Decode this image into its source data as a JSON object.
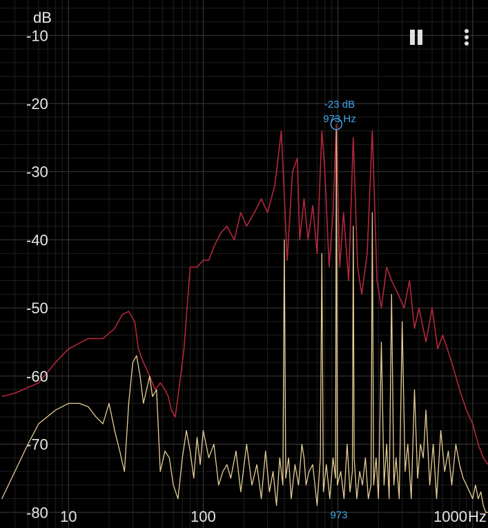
{
  "chart_data": {
    "type": "line",
    "title": "",
    "ylabel": "dB",
    "xlabel": "Hz",
    "x_scale": "log",
    "xlim": [
      3.1,
      13000
    ],
    "ylim": [
      -82.3,
      -4.8
    ],
    "x_ticks": [
      10,
      100,
      1000
    ],
    "x_tick_labels": [
      "10",
      "100",
      "1000"
    ],
    "y_ticks": [
      -10,
      -20,
      -30,
      -40,
      -50,
      -60,
      -70,
      -80
    ],
    "y_tick_labels": [
      "-10",
      "-20",
      "-30",
      "-40",
      "-50",
      "-60",
      "-70",
      "-80"
    ],
    "grid": true,
    "colors": {
      "peak_hold": "#b3283c",
      "live": "#e8cf96",
      "cursor": "#3fa6e8",
      "grid": "#3b3b3b",
      "grid_minor": "#1f1f1f",
      "background": "#000000"
    },
    "cursor": {
      "db_label": "-23 dB",
      "hz_label": "973 Hz",
      "axis_label": "973",
      "x": 973,
      "y": -23
    },
    "series": [
      {
        "key": "peak-hold",
        "x": [
          3.2,
          4,
          6,
          8,
          10,
          14,
          18,
          22,
          25,
          28,
          31,
          33,
          36,
          40,
          44,
          48,
          52,
          55,
          58,
          62,
          66,
          72,
          80,
          90,
          100,
          110,
          120,
          135,
          150,
          170,
          190,
          210,
          240,
          270,
          300,
          340,
          380,
          420,
          460,
          500,
          520,
          560,
          600,
          650,
          700,
          760,
          800,
          860,
          920,
          973,
          1030,
          1100,
          1200,
          1300,
          1400,
          1500,
          1650,
          1800,
          1950,
          2100,
          2300,
          2500,
          2800,
          3100,
          3400,
          3700,
          4000,
          4500,
          5000,
          5500,
          6000,
          7000,
          8000,
          9000,
          10000,
          11000,
          12000,
          13000
        ],
        "y": [
          -63,
          -62.5,
          -61,
          -58,
          -56,
          -54.5,
          -54.5,
          -53,
          -51,
          -50.5,
          -52,
          -56,
          -58,
          -60,
          -62,
          -61,
          -62,
          -63,
          -65,
          -66,
          -62,
          -56,
          -44,
          -44,
          -43,
          -43,
          -41,
          -39,
          -38,
          -40,
          -36,
          -38,
          -36,
          -34,
          -36,
          -32,
          -24,
          -43,
          -30,
          -28,
          -40,
          -34,
          -40,
          -35,
          -42,
          -24,
          -30,
          -44,
          -36,
          -23,
          -44,
          -36,
          -46,
          -25,
          -44,
          -48,
          -42,
          -24,
          -46,
          -50,
          -44,
          -46,
          -48,
          -50,
          -46,
          -53,
          -50,
          -55,
          -50,
          -56,
          -54,
          -58,
          -62,
          -65,
          -67,
          -70,
          -72,
          -73
        ]
      },
      {
        "key": "live",
        "x": [
          3.2,
          4,
          5,
          6,
          8,
          10,
          12,
          14,
          16,
          18,
          20,
          22,
          24,
          26,
          28,
          30,
          32,
          34,
          36,
          38,
          40,
          42,
          45,
          48,
          52,
          56,
          60,
          65,
          70,
          75,
          80,
          85,
          90,
          95,
          100,
          110,
          120,
          130,
          140,
          150,
          160,
          175,
          190,
          210,
          230,
          250,
          270,
          290,
          310,
          330,
          350,
          370,
          390,
          400,
          410,
          430,
          450,
          480,
          510,
          540,
          560,
          580,
          610,
          650,
          700,
          740,
          760,
          780,
          820,
          870,
          920,
          960,
          973,
          990,
          1050,
          1110,
          1170,
          1230,
          1280,
          1300,
          1320,
          1380,
          1450,
          1520,
          1600,
          1680,
          1760,
          1800,
          1840,
          1920,
          2000,
          2100,
          2200,
          2300,
          2400,
          2500,
          2600,
          2700,
          2850,
          3000,
          3150,
          3300,
          3500,
          3700,
          3900,
          4100,
          4300,
          4500,
          4800,
          5100,
          5400,
          5800,
          6200,
          6600,
          7000,
          7500,
          8000,
          8500,
          9000,
          9500,
          10000,
          10500,
          11000,
          11500,
          12000,
          12500,
          13000
        ],
        "y": [
          -78,
          -74,
          -70,
          -67,
          -65,
          -64,
          -64,
          -64.5,
          -66,
          -67,
          -64,
          -68,
          -71,
          -74,
          -64,
          -58,
          -57,
          -60,
          -64,
          -62,
          -60,
          -63,
          -62,
          -74,
          -71,
          -72,
          -76,
          -78,
          -72,
          -68,
          -71,
          -75,
          -69,
          -73,
          -68,
          -72,
          -70,
          -76,
          -74,
          -73,
          -75,
          -71,
          -77,
          -70,
          -76,
          -73,
          -78,
          -71,
          -77,
          -74,
          -79,
          -72,
          -76,
          -40,
          -75,
          -72,
          -78,
          -73,
          -76,
          -70,
          -72,
          -76,
          -74,
          -73,
          -79,
          -72,
          -42,
          -77,
          -73,
          -78,
          -72,
          -75,
          -24,
          -76,
          -74,
          -78,
          -70,
          -77,
          -74,
          -38,
          -72,
          -78,
          -74,
          -76,
          -72,
          -78,
          -76,
          -36,
          -76,
          -72,
          -78,
          -55,
          -76,
          -70,
          -78,
          -48,
          -76,
          -72,
          -78,
          -52,
          -74,
          -70,
          -78,
          -62,
          -75,
          -70,
          -72,
          -65,
          -76,
          -70,
          -78,
          -68,
          -74,
          -71,
          -76,
          -70,
          -73,
          -75,
          -76,
          -77,
          -78,
          -76,
          -78,
          -77,
          -79,
          -80,
          -80
        ]
      }
    ]
  }
}
